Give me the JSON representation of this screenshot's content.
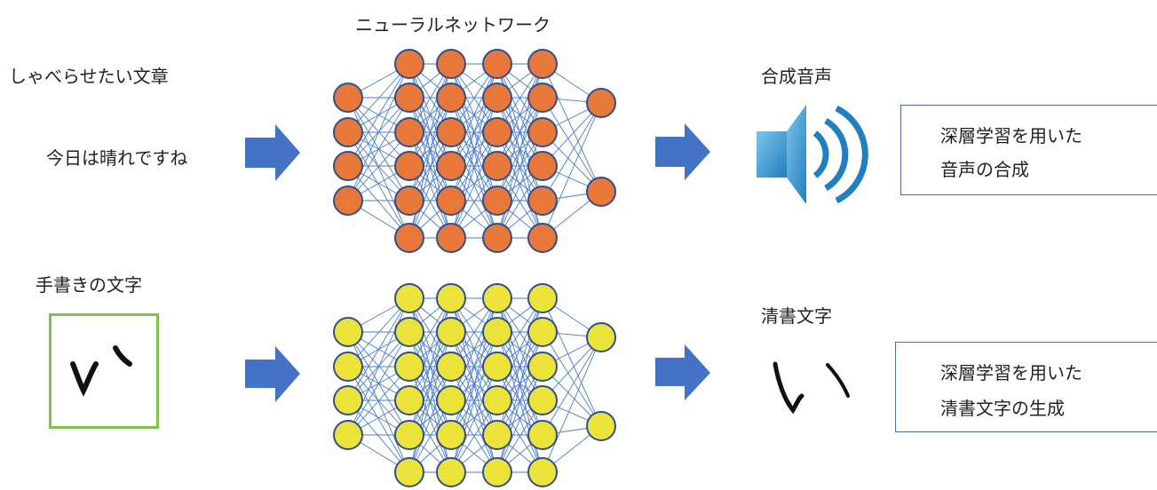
{
  "network_title": "ニューラルネットワーク",
  "top_row": {
    "input_label": "しゃべらせたい文章",
    "input_text": "今日は晴れですね",
    "output_label": "合成音声",
    "result_box": [
      "深層学習を用いた",
      "音声の合成"
    ],
    "node_color": "#e8783a"
  },
  "bottom_row": {
    "input_label": "手書きの文字",
    "output_label": "清書文字",
    "result_box": [
      "深層学習を用いた",
      "清書文字の生成"
    ],
    "node_color": "#ebe23a"
  },
  "icons": {
    "arrow": "right-arrow-icon",
    "speaker": "speaker-icon"
  },
  "colors": {
    "arrow": "#4472c4",
    "edge": "#4a7bd0",
    "sample_border": "#7dc24b",
    "box_border": "#4a6fb5"
  }
}
